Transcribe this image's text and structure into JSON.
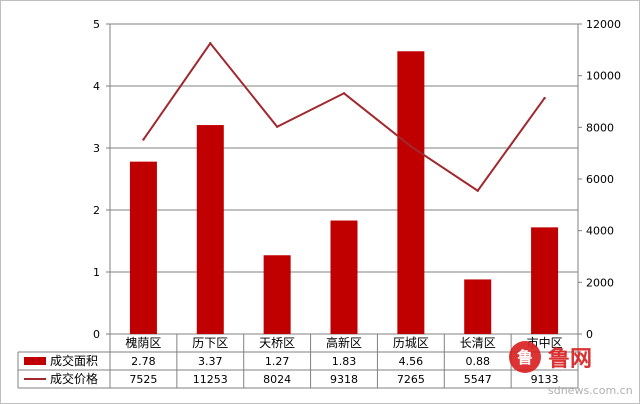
{
  "chart_data": {
    "type": "bar",
    "categories": [
      "槐荫区",
      "历下区",
      "天桥区",
      "高新区",
      "历城区",
      "长清区",
      "市中区"
    ],
    "series": [
      {
        "name": "成交面积",
        "type": "bar",
        "axis": "left",
        "color": "#c00000",
        "values": [
          2.78,
          3.37,
          1.27,
          1.83,
          4.56,
          0.88,
          1.72
        ],
        "labels": [
          "2.78",
          "3.37",
          "1.27",
          "1.83",
          "4.56",
          "0.88",
          ""
        ]
      },
      {
        "name": "成交价格",
        "type": "line",
        "axis": "right",
        "color": "#a0282e",
        "values": [
          7525,
          11253,
          8024,
          9318,
          7265,
          5547,
          9133
        ],
        "labels": [
          "7525",
          "11253",
          "8024",
          "9318",
          "7265",
          "5547",
          "9133"
        ]
      }
    ],
    "y_left": {
      "ylim": [
        0,
        5
      ],
      "ticks": [
        0,
        1,
        2,
        3,
        4,
        5
      ]
    },
    "y_right": {
      "ylim": [
        0,
        12000
      ],
      "ticks": [
        0,
        2000,
        4000,
        6000,
        8000,
        10000,
        12000
      ]
    },
    "grid": true,
    "legend": "data-table"
  },
  "watermark": {
    "text": "鲁网",
    "url": "sdnews.com.cn"
  }
}
